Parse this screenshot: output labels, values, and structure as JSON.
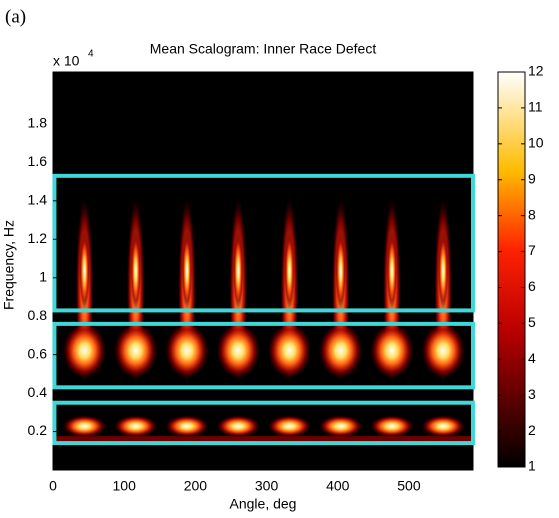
{
  "panel_label": "(a)",
  "chart_data": {
    "type": "heatmap",
    "title": "Mean Scalogram: Inner Race Defect",
    "x_label": "Angle, deg",
    "y_label": "Frequency, Hz",
    "y_multiplier": "x 10",
    "y_multiplier_exp": "4",
    "xlim": [
      0,
      590
    ],
    "xticks": [
      0,
      100,
      200,
      300,
      400,
      500
    ],
    "ylim": [
      0,
      2.07
    ],
    "yticks": [
      0.2,
      0.4,
      0.6,
      0.8,
      1,
      1.2,
      1.4,
      1.6,
      1.8
    ],
    "colorbar": {
      "lim": [
        1,
        12
      ],
      "ticks": [
        1,
        2,
        3,
        4,
        5,
        6,
        7,
        8,
        9,
        10,
        11,
        12
      ],
      "colormap": "hot"
    },
    "highlight_color": "#3fd8d8",
    "highlight_boxes": [
      {
        "x": [
          2,
          590
        ],
        "y": [
          0.83,
          1.53
        ]
      },
      {
        "x": [
          2,
          590
        ],
        "y": [
          0.43,
          0.76
        ]
      },
      {
        "x": [
          2,
          590
        ],
        "y": [
          0.14,
          0.35
        ]
      }
    ]
  }
}
